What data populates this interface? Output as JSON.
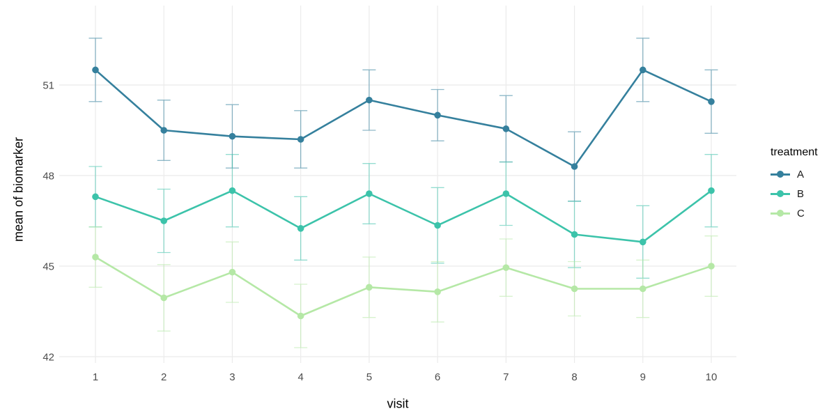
{
  "chart_data": {
    "type": "line",
    "title": "",
    "xlabel": "visit",
    "ylabel": "mean of biomarker",
    "x": [
      1,
      2,
      3,
      4,
      5,
      6,
      7,
      8,
      9,
      10
    ],
    "x_tick_labels": [
      "1",
      "2",
      "3",
      "4",
      "5",
      "6",
      "7",
      "8",
      "9",
      "10"
    ],
    "y_ticks": [
      42,
      45,
      48,
      51
    ],
    "y_tick_labels": [
      "42",
      "45",
      "48",
      "51"
    ],
    "ylim": [
      41.8,
      53.6
    ],
    "grid": "major-only",
    "error_bars": true,
    "legend": {
      "title": "treatment",
      "position": "right"
    },
    "series": [
      {
        "name": "A",
        "color": "#35809d",
        "values": [
          51.5,
          49.5,
          49.3,
          49.2,
          50.5,
          50.0,
          49.55,
          48.3,
          51.5,
          50.45
        ],
        "se": [
          1.05,
          1.0,
          1.05,
          0.95,
          1.0,
          0.85,
          1.1,
          1.15,
          1.05,
          1.05
        ]
      },
      {
        "name": "B",
        "color": "#3cc3aa",
        "values": [
          47.3,
          46.5,
          47.5,
          46.25,
          47.4,
          46.35,
          47.4,
          46.05,
          45.8,
          47.5
        ],
        "se": [
          1.0,
          1.05,
          1.2,
          1.05,
          1.0,
          1.25,
          1.05,
          1.1,
          1.2,
          1.2
        ]
      },
      {
        "name": "C",
        "color": "#b5e8a6",
        "values": [
          45.3,
          43.95,
          44.8,
          43.35,
          44.3,
          44.15,
          44.95,
          44.25,
          44.25,
          45.0
        ],
        "se": [
          1.0,
          1.1,
          1.0,
          1.05,
          1.0,
          1.0,
          0.95,
          0.9,
          0.95,
          1.0
        ]
      }
    ]
  },
  "colors": {
    "background": "#ffffff",
    "gridline": "#ebebeb",
    "tick_label": "#4d4d4d",
    "axis_title": "#000000",
    "error_bar_opacity": 0.55
  }
}
